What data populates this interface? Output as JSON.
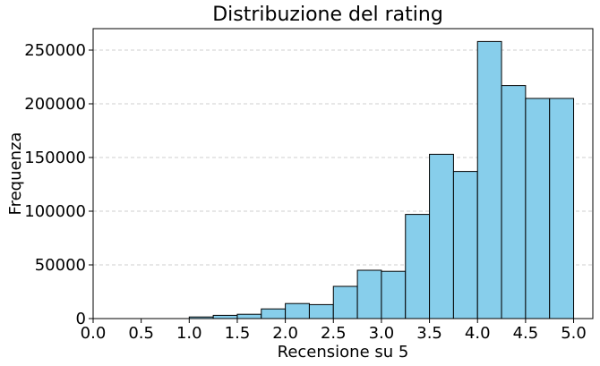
{
  "chart_data": {
    "type": "bar",
    "title": "Distribuzione del rating",
    "xlabel": "Recensione su 5",
    "ylabel": "Frequenza",
    "xlim": [
      0,
      5.2
    ],
    "ylim": [
      0,
      270000
    ],
    "grid": "y",
    "x_ticks": [
      "0.0",
      "0.5",
      "1.0",
      "1.5",
      "2.0",
      "2.5",
      "3.0",
      "3.5",
      "4.0",
      "4.5",
      "5.0"
    ],
    "y_ticks": [
      "0",
      "50000",
      "100000",
      "150000",
      "200000",
      "250000"
    ],
    "bin_edges": [
      1.0,
      1.25,
      1.5,
      1.75,
      2.0,
      2.25,
      2.5,
      2.75,
      3.0,
      3.25,
      3.5,
      3.75,
      4.0,
      4.25,
      4.5,
      4.75,
      5.0
    ],
    "values": [
      1500,
      3000,
      4000,
      9000,
      14000,
      13000,
      30000,
      45000,
      44000,
      97000,
      153000,
      137000,
      258000,
      217000,
      205000,
      205000
    ]
  }
}
